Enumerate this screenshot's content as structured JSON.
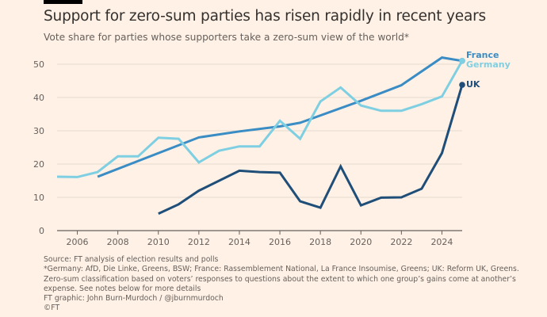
{
  "header": {
    "title": "Support for zero-sum parties has risen rapidly in recent years",
    "subtitle": "Vote share for parties whose supporters take a zero-sum view of the world*"
  },
  "footer": {
    "lines": [
      "Source: FT analysis of election results and polls",
      "*Germany: AfD, Die Linke, Greens, BSW; France: Rassemblement National, La France Insoumise, Greens; UK: Reform UK, Greens.",
      "Zero-sum classification based on voters’ responses to questions about the extent to which one group’s gains come at another’s",
      "expense. See notes below for more details",
      "FT graphic: John Burn-Murdoch / @jburnmurdoch",
      "©FT"
    ]
  },
  "chart_data": {
    "type": "line",
    "title": "Support for zero-sum parties has risen rapidly in recent years",
    "subtitle": "Vote share for parties whose supporters take a zero-sum view of the world*",
    "xlabel": "",
    "ylabel": "",
    "xlim": [
      2005,
      2025
    ],
    "ylim": [
      0,
      55
    ],
    "x_ticks": [
      2006,
      2008,
      2010,
      2012,
      2014,
      2016,
      2018,
      2020,
      2022,
      2024
    ],
    "y_ticks": [
      0,
      10,
      20,
      30,
      40,
      50
    ],
    "grid": "horizontal",
    "legend": "end-of-line labels, right",
    "series": [
      {
        "name": "France",
        "color": "#3a8cc4",
        "end_marker": true,
        "points": [
          [
            2007,
            16.2
          ],
          [
            2012,
            28.0
          ],
          [
            2014,
            29.8
          ],
          [
            2016,
            31.3
          ],
          [
            2017,
            32.4
          ],
          [
            2020,
            39.0
          ],
          [
            2022,
            43.7
          ],
          [
            2024,
            52.0
          ],
          [
            2025,
            51.0
          ]
        ]
      },
      {
        "name": "Germany",
        "color": "#7fcfe3",
        "end_marker": true,
        "points": [
          [
            2005,
            16.2
          ],
          [
            2006,
            16.1
          ],
          [
            2007,
            17.6
          ],
          [
            2008,
            22.3
          ],
          [
            2009,
            22.3
          ],
          [
            2010,
            27.9
          ],
          [
            2011,
            27.6
          ],
          [
            2012,
            20.5
          ],
          [
            2013,
            24.0
          ],
          [
            2014,
            25.3
          ],
          [
            2015,
            25.3
          ],
          [
            2016,
            33.0
          ],
          [
            2017,
            27.6
          ],
          [
            2018,
            38.8
          ],
          [
            2019,
            43.0
          ],
          [
            2020,
            37.6
          ],
          [
            2021,
            36.0
          ],
          [
            2022,
            36.0
          ],
          [
            2023,
            38.0
          ],
          [
            2024,
            40.3
          ],
          [
            2025,
            51.0
          ]
        ]
      },
      {
        "name": "UK",
        "color": "#1f4e79",
        "end_marker": true,
        "points": [
          [
            2010,
            5.1
          ],
          [
            2011,
            7.9
          ],
          [
            2012,
            12.0
          ],
          [
            2014,
            18.0
          ],
          [
            2015,
            17.6
          ],
          [
            2016,
            17.4
          ],
          [
            2017,
            8.8
          ],
          [
            2018,
            6.9
          ],
          [
            2019,
            19.3
          ],
          [
            2020,
            7.6
          ],
          [
            2021,
            9.9
          ],
          [
            2022,
            10.0
          ],
          [
            2023,
            12.6
          ],
          [
            2024,
            23.3
          ],
          [
            2025,
            43.8
          ]
        ]
      }
    ]
  }
}
